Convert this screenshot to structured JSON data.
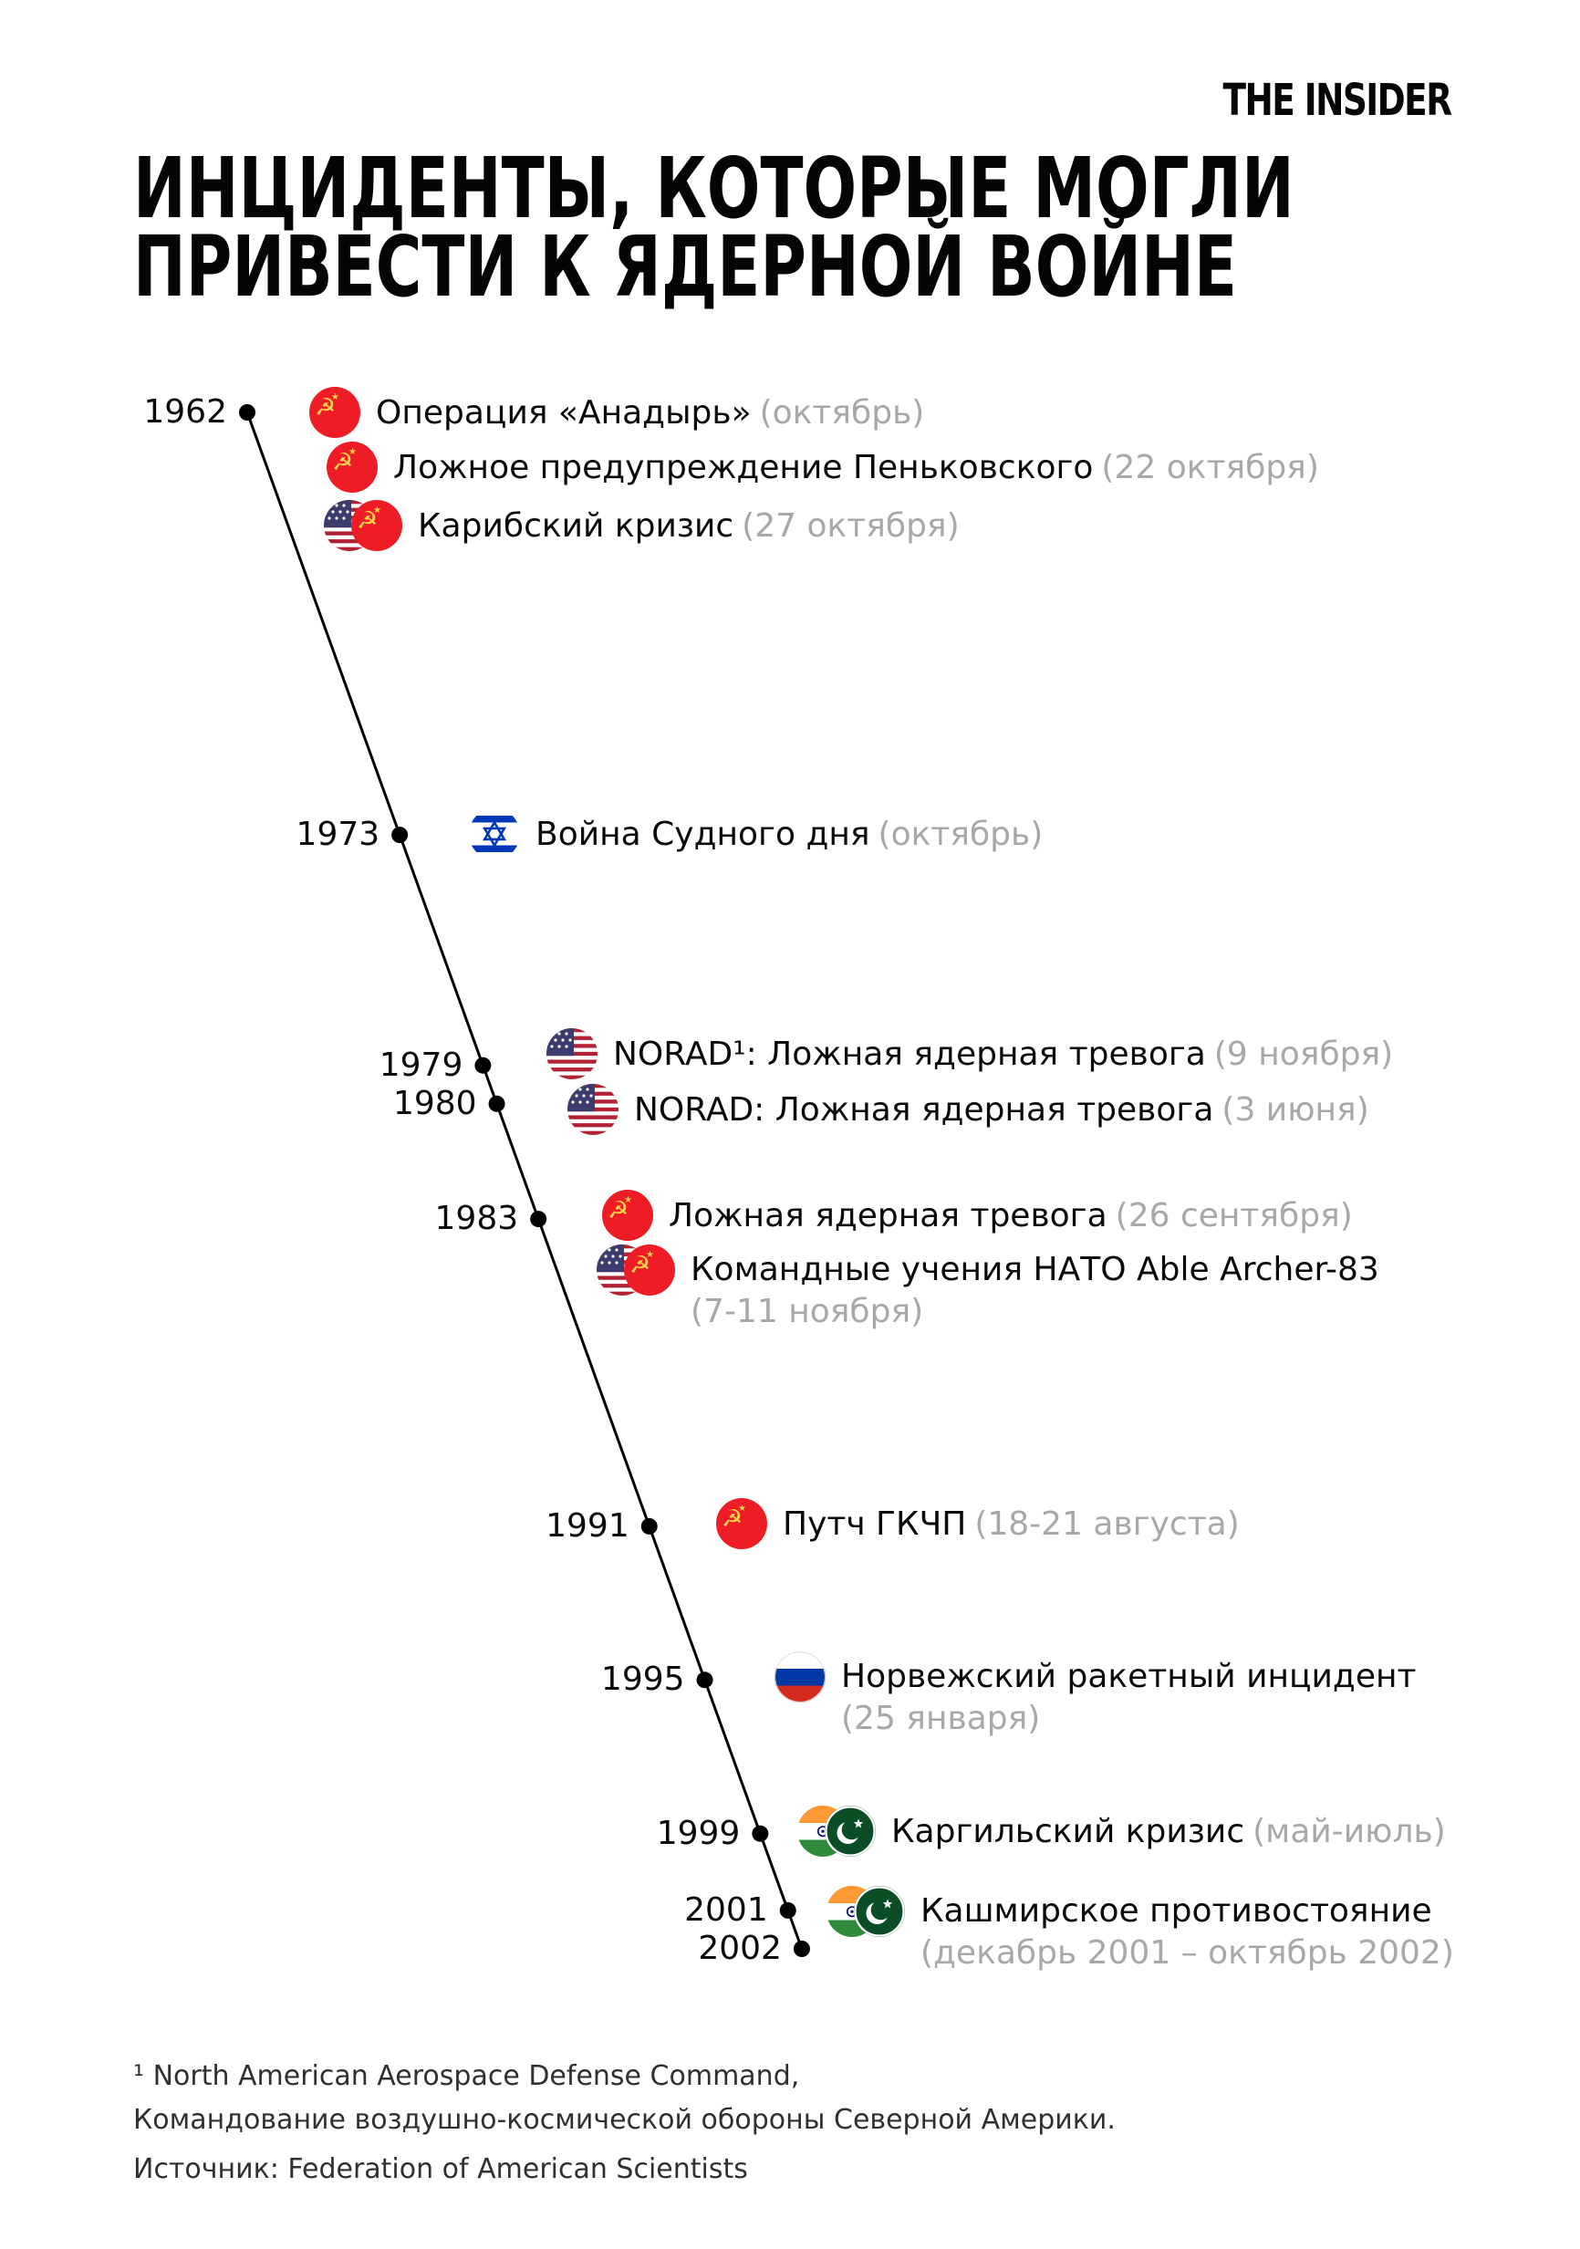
{
  "logo": "THE INSIDER",
  "title": {
    "line1": "ИНЦИДЕНТЫ, КОТОРЫЕ МОГЛИ",
    "line2": "ПРИВЕСТИ К ЯДЕРНОЙ ВОЙНЕ"
  },
  "timeline": {
    "years": [
      1962,
      1973,
      1979,
      1980,
      1983,
      1991,
      1995,
      1999,
      2001,
      2002
    ],
    "start_year": 1962,
    "end_year": 2002
  },
  "events": [
    {
      "year": 1962,
      "flags": [
        "ussr"
      ],
      "name": "Операция «Анадырь»",
      "date": "(октябрь)"
    },
    {
      "year": 1962,
      "flags": [
        "ussr"
      ],
      "name": "Ложное предупреждение Пеньковского",
      "date": "(22 октября)"
    },
    {
      "year": 1962,
      "flags": [
        "usa",
        "ussr"
      ],
      "name": "Карибский кризис",
      "date": "(27 октября)"
    },
    {
      "year": 1973,
      "flags": [
        "israel"
      ],
      "name": "Война Судного дня",
      "date": "(октябрь)"
    },
    {
      "year": 1979,
      "flags": [
        "usa"
      ],
      "name": "NORAD¹: Ложная ядерная тревога",
      "date": "(9 ноября)"
    },
    {
      "year": 1980,
      "flags": [
        "usa"
      ],
      "name": "NORAD: Ложная ядерная тревога",
      "date": "(3 июня)"
    },
    {
      "year": 1983,
      "flags": [
        "ussr"
      ],
      "name": "Ложная ядерная тревога",
      "date": "(26 сентября)"
    },
    {
      "year": 1983,
      "flags": [
        "usa",
        "ussr"
      ],
      "name": "Командные учения НАТО Able Archer-83",
      "date": "(7-11 ноября)"
    },
    {
      "year": 1991,
      "flags": [
        "ussr"
      ],
      "name": "Путч ГКЧП",
      "date": "(18-21 августа)"
    },
    {
      "year": 1995,
      "flags": [
        "russia"
      ],
      "name": "Норвежский ракетный инцидент",
      "date": "(25 января)"
    },
    {
      "year": 1999,
      "flags": [
        "india",
        "pakistan"
      ],
      "name": "Каргильский кризис",
      "date": "(май-июль)"
    },
    {
      "year": 2001,
      "flags": [
        "india",
        "pakistan"
      ],
      "name": "Кашмирское противостояние",
      "date": "(декабрь 2001 – октябрь 2002)"
    }
  ],
  "footnote": {
    "line1": "¹ North American Aerospace Defense Command,",
    "line2": "Командование воздушно-космической обороны Северной Америки.",
    "source": "Источник: Federation of American Scientists"
  },
  "colors": {
    "text": "#0a0a0a",
    "date_gray": "#a8a8a8",
    "footer": "#303030",
    "line": "#000000",
    "ussr_red": "#ee1c25",
    "soviet_gold": "#ffd24d",
    "usa_red": "#b22234",
    "usa_blue": "#3c3b6e",
    "israel_blue": "#0038b8",
    "russia_white": "#ffffff",
    "russia_blue": "#0039a6",
    "russia_red": "#d52b1e",
    "india_saffron": "#ff9933",
    "india_green": "#2e8b3a",
    "india_navy": "#000080",
    "pakistan_green": "#0b4e26"
  }
}
